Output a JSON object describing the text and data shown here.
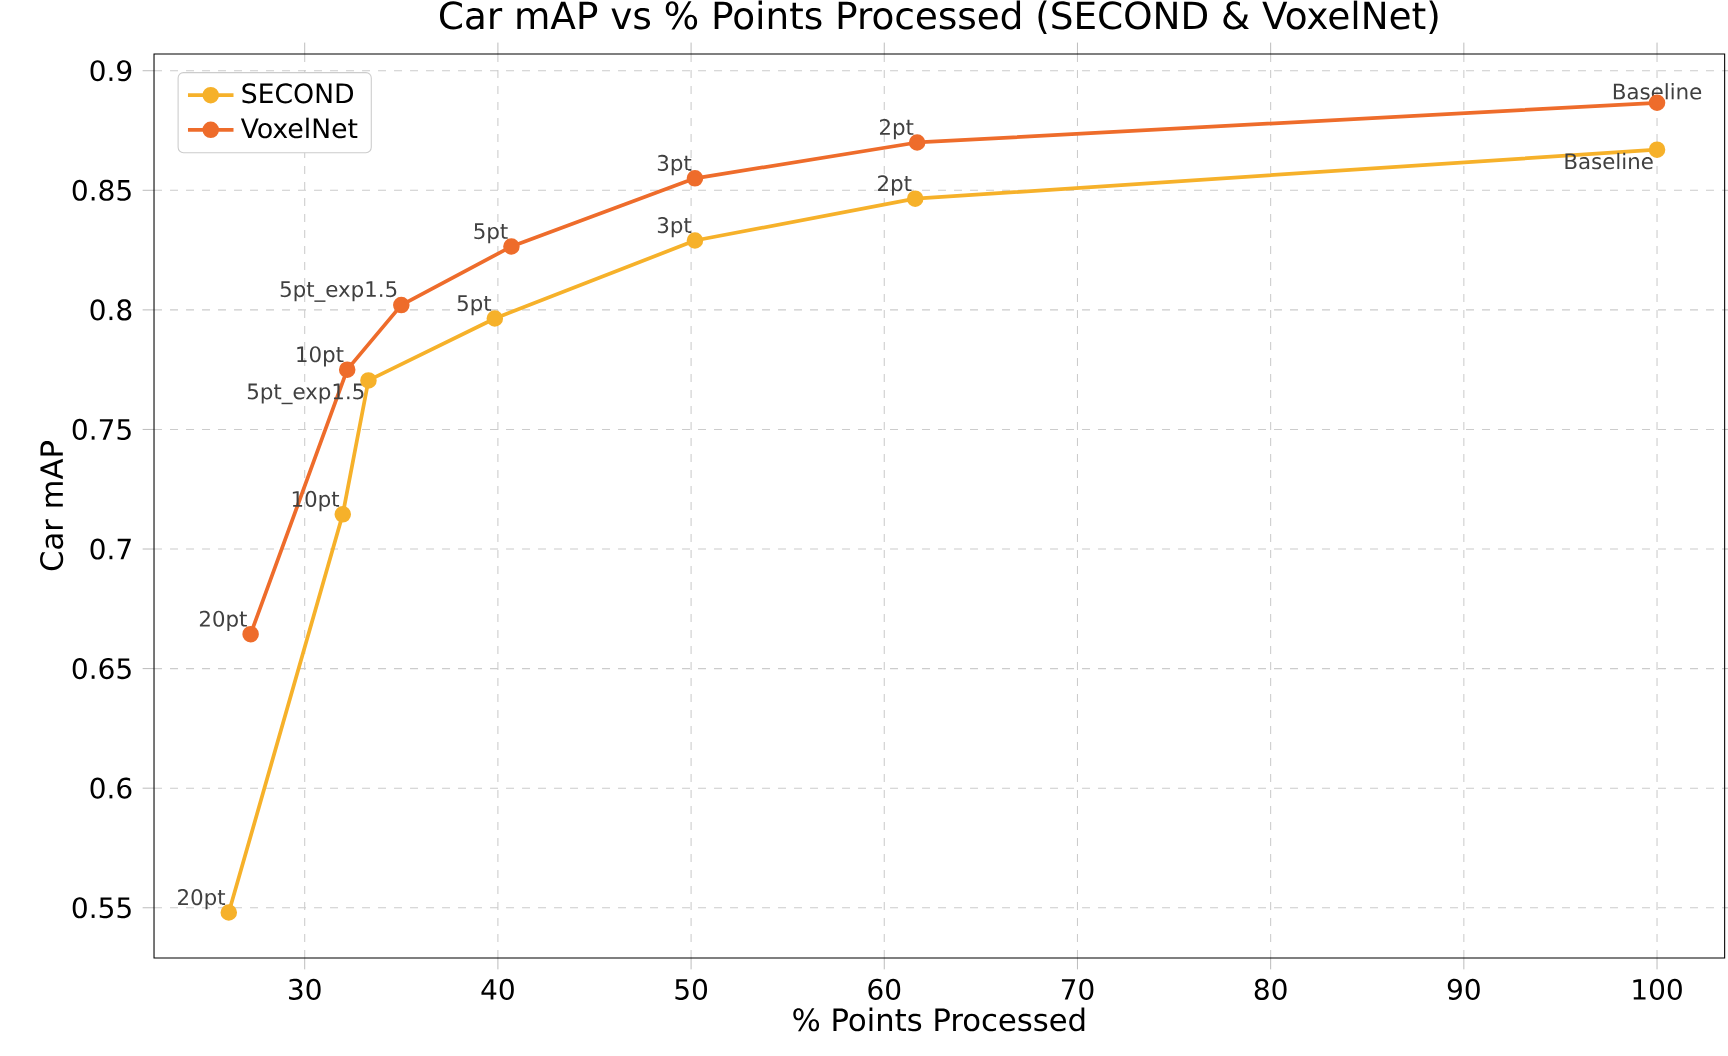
{
  "chart_data": {
    "type": "line",
    "title": "Car mAP vs % Points Processed (SECOND & VoxelNet)",
    "xlabel": "% Points Processed",
    "ylabel": "Car mAP",
    "xlim": [
      22.2,
      103.5
    ],
    "ylim": [
      0.529,
      0.907
    ],
    "xticks": [
      30,
      40,
      50,
      60,
      70,
      80,
      90,
      100
    ],
    "yticks": [
      0.55,
      0.6,
      0.65,
      0.7,
      0.75,
      0.8,
      0.85,
      0.9
    ],
    "grid": true,
    "legend": "top left",
    "marker": "circle",
    "line_style": "solid",
    "series": [
      {
        "name": "SECOND",
        "color": "#f6b12a",
        "x": [
          26.07,
          31.97,
          33.3,
          39.84,
          50.2,
          61.6,
          100
        ],
        "values": [
          0.548,
          0.7145,
          0.7705,
          0.7964,
          0.829,
          0.8465,
          0.867
        ]
      },
      {
        "name": "VoxelNet",
        "color": "#ee6c2b",
        "x": [
          27.2,
          32.2,
          35.0,
          40.7,
          50.2,
          61.7,
          100
        ],
        "values": [
          0.6644,
          0.775,
          0.802,
          0.8265,
          0.855,
          0.87,
          0.8866
        ]
      }
    ],
    "annotations": [
      {
        "text": "20pt",
        "x": 26.07,
        "y": 0.548
      },
      {
        "text": "10pt",
        "x": 31.97,
        "y": 0.7145
      },
      {
        "text": "5pt_exp1.5",
        "x": 33.3,
        "y": 0.7705
      },
      {
        "text": "5pt",
        "x": 39.84,
        "y": 0.7964
      },
      {
        "text": "3pt",
        "x": 50.2,
        "y": 0.829
      },
      {
        "text": "2pt",
        "x": 61.6,
        "y": 0.8465
      },
      {
        "text": "Baseline",
        "x": 100,
        "y": 0.867
      },
      {
        "text": "20pt",
        "x": 27.2,
        "y": 0.6644
      },
      {
        "text": "10pt",
        "x": 32.2,
        "y": 0.775
      },
      {
        "text": "5pt_exp1.5",
        "x": 35.0,
        "y": 0.802
      },
      {
        "text": "5pt",
        "x": 40.7,
        "y": 0.8265
      },
      {
        "text": "3pt",
        "x": 50.2,
        "y": 0.855
      },
      {
        "text": "2pt",
        "x": 61.7,
        "y": 0.87
      },
      {
        "text": "Baseline",
        "x": 100,
        "y": 0.8866
      }
    ]
  }
}
